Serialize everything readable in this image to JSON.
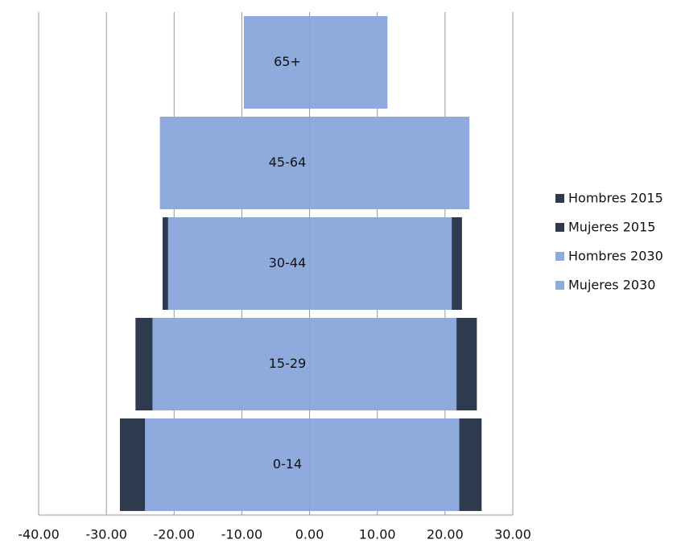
{
  "chart_data": {
    "type": "bar",
    "orientation": "horizontal",
    "overlap": true,
    "categories": [
      "0-14",
      "15-29",
      "30-44",
      "45-64",
      "65+"
    ],
    "series": [
      {
        "name": "Hombres 2015",
        "color": "#2e3a4e",
        "values": [
          -28.0,
          -25.7,
          -21.7,
          -20.0,
          -6.0
        ]
      },
      {
        "name": "Mujeres 2015",
        "color": "#2e3a4e",
        "values": [
          25.4,
          24.7,
          22.5,
          21.0,
          7.0
        ]
      },
      {
        "name": "Hombres 2030",
        "color": "#8faadc",
        "values": [
          -24.3,
          -23.2,
          -20.9,
          -22.1,
          -9.7
        ]
      },
      {
        "name": "Mujeres 2030",
        "color": "#8faadc",
        "values": [
          22.1,
          21.7,
          21.0,
          23.6,
          11.5
        ]
      }
    ],
    "xlim": [
      -40,
      30
    ],
    "xticks": [
      {
        "value": -40,
        "label": "-40.00"
      },
      {
        "value": -30,
        "label": "-30.00"
      },
      {
        "value": -20,
        "label": "-20.00"
      },
      {
        "value": -10,
        "label": "-10.00"
      },
      {
        "value": 0,
        "label": "0.00"
      },
      {
        "value": 10,
        "label": "10.00"
      },
      {
        "value": 20,
        "label": "20.00"
      },
      {
        "value": 30,
        "label": "30.00"
      }
    ],
    "grid": true,
    "legend": "right"
  }
}
